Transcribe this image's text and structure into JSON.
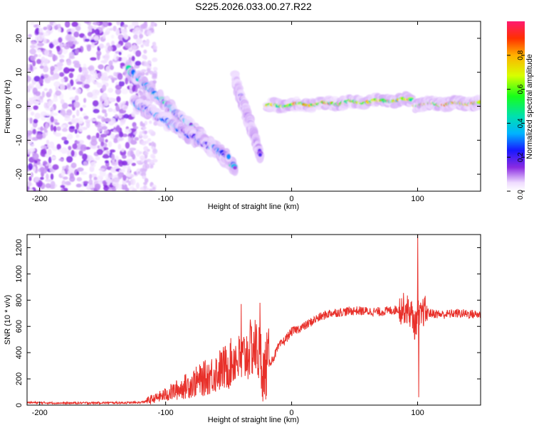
{
  "figure": {
    "title": "S225.2026.033.00.27.R22"
  },
  "chart_data": [
    {
      "type": "heatmap",
      "title": "S225.2026.033.00.27.R22",
      "xlabel": "Height of straight line (km)",
      "ylabel": "Frequency (Hz)",
      "xlim": [
        -210,
        150
      ],
      "ylim": [
        -25,
        25
      ],
      "xticks": [
        -200,
        -100,
        0,
        100
      ],
      "yticks": [
        -20,
        -10,
        0,
        10,
        20
      ],
      "colorbar": {
        "label": "Normalized spectral amplitude",
        "range": [
          0,
          1
        ],
        "ticks": [
          0.0,
          0.2,
          0.4,
          0.6,
          0.8
        ]
      },
      "features": [
        {
          "name": "noise region",
          "x": [
            -210,
            -120
          ],
          "y": [
            -25,
            25
          ],
          "amplitude": 0.15
        },
        {
          "name": "upper descending arc",
          "x": [
            -130,
            -45
          ],
          "y_start": 11,
          "y_end": -18,
          "amplitude": 0.45
        },
        {
          "name": "lower descending arc",
          "x": [
            -125,
            -50
          ],
          "y_start": 1,
          "y_end": -15,
          "amplitude": 0.35
        },
        {
          "name": "arc near -40 km",
          "x": [
            -45,
            -25
          ],
          "y_start": 8,
          "y_end": -14,
          "amplitude": 0.2
        },
        {
          "name": "steady line",
          "x": [
            -20,
            95
          ],
          "y_start": 0,
          "y_end": 2,
          "amplitude": 0.85
        },
        {
          "name": "steady line after 100 km",
          "x": [
            98,
            150
          ],
          "y_start": 0.5,
          "y_end": 1,
          "amplitude": 0.9
        }
      ]
    },
    {
      "type": "line",
      "title": "",
      "xlabel": "Height of straight line (km)",
      "ylabel": "SNR (10 * v/v)",
      "xlim": [
        -210,
        150
      ],
      "ylim": [
        0,
        1300
      ],
      "xticks": [
        -200,
        -100,
        0,
        100
      ],
      "yticks": [
        0,
        200,
        400,
        600,
        800,
        1000,
        1200
      ],
      "series": [
        {
          "name": "SNR",
          "color": "#e8302a",
          "x": [
            -210,
            -180,
            -150,
            -130,
            -120,
            -115,
            -100,
            -90,
            -80,
            -70,
            -60,
            -50,
            -45,
            -40,
            -35,
            -30,
            -25,
            -22,
            -20,
            -15,
            -10,
            -5,
            0,
            10,
            20,
            30,
            50,
            70,
            85,
            90,
            95,
            98,
            100,
            102,
            105,
            110,
            120,
            130,
            150
          ],
          "values": [
            20,
            15,
            18,
            18,
            20,
            30,
            80,
            120,
            160,
            200,
            250,
            300,
            360,
            330,
            400,
            450,
            380,
            250,
            300,
            350,
            450,
            500,
            560,
            600,
            660,
            700,
            720,
            710,
            730,
            740,
            700,
            600,
            700,
            660,
            720,
            700,
            690,
            700,
            690
          ],
          "spikes": [
            {
              "x": -40,
              "value": 770
            },
            {
              "x": -25,
              "value": 780
            },
            {
              "x": -22,
              "value": 100
            },
            {
              "x": 100,
              "value": 1300
            },
            {
              "x": 101,
              "value": 60
            }
          ],
          "noise": 35
        }
      ]
    }
  ]
}
